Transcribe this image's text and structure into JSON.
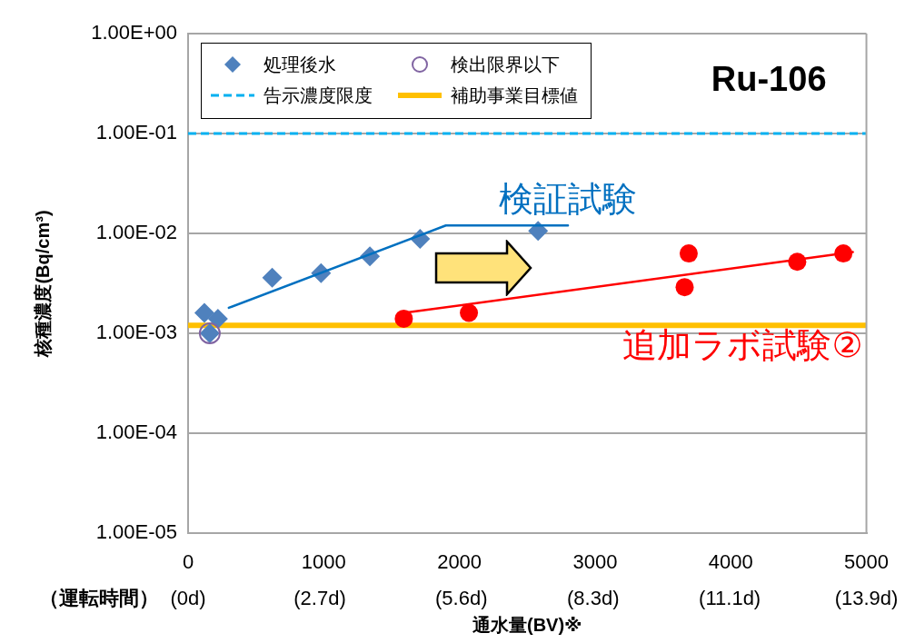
{
  "chart_data": {
    "type": "scatter",
    "title": "Ru-106",
    "xlabel": "通水量(BV)※",
    "ylabel": "核種濃度(Bq/cm³)",
    "x2label": "（運転時間）",
    "series": [
      {
        "name": "処理後水",
        "color": "#4f81bd",
        "marker": "diamond",
        "x": [
          120,
          220,
          160,
          620,
          980,
          1340,
          1710,
          2580
        ],
        "values": [
          0.0016,
          0.0014,
          0.001,
          0.0036,
          0.004,
          0.0059,
          0.0088,
          0.0106
        ]
      },
      {
        "name": "検出限界以下",
        "color": "#8064a2",
        "marker": "circle",
        "x": [
          160
        ],
        "values": [
          0.001
        ]
      },
      {
        "color": "#ff0000",
        "marker": "circle",
        "x": [
          1590,
          2070,
          3660,
          3690,
          4490,
          4830
        ],
        "values": [
          0.0014,
          0.0016,
          0.0029,
          0.0063,
          0.0052,
          0.0063
        ]
      },
      {
        "name": "検証試験",
        "type": "line",
        "color": "#0070c0",
        "x": [
          300,
          1900,
          2800
        ],
        "values": [
          0.0018,
          0.012,
          0.012
        ]
      },
      {
        "name": "追加ラボ試験②",
        "type": "line",
        "color": "#ff0000",
        "x": [
          1590,
          4900
        ],
        "values": [
          0.0016,
          0.0065
        ]
      }
    ],
    "ref_lines": [
      {
        "axis": "y",
        "value": 0.1,
        "label": "告示濃度限度",
        "color": "#00b0f0",
        "line_style": "dashed"
      },
      {
        "axis": "y",
        "value": 0.0012,
        "label": "補助事業目標値",
        "color": "#ffc000",
        "line_style": "solid"
      }
    ],
    "xlim": [
      0,
      5000
    ],
    "xticks": [
      0,
      1000,
      2000,
      3000,
      4000,
      5000
    ],
    "x2lim": [
      0,
      13.9
    ],
    "x2ticks": [
      {
        "value": 0,
        "label": "(0d)"
      },
      {
        "value": 2.7,
        "label": "(2.7d)"
      },
      {
        "value": 5.6,
        "label": "(5.6d)"
      },
      {
        "value": 8.3,
        "label": "(8.3d)"
      },
      {
        "value": 11.1,
        "label": "(11.1d)"
      },
      {
        "value": 13.9,
        "label": "(13.9d)"
      }
    ],
    "ylim": [
      1e-05,
      1
    ],
    "yticks": [
      {
        "value": 1,
        "label": "1.00E+00"
      },
      {
        "value": 0.1,
        "label": "1.00E-01"
      },
      {
        "value": 0.01,
        "label": "1.00E-02"
      },
      {
        "value": 0.001,
        "label": "1.00E-03"
      },
      {
        "value": 0.0001,
        "label": "1.00E-04"
      },
      {
        "value": 1e-05,
        "label": "1.00E-05"
      }
    ],
    "log": true,
    "grid": "y",
    "legend": "top left"
  }
}
